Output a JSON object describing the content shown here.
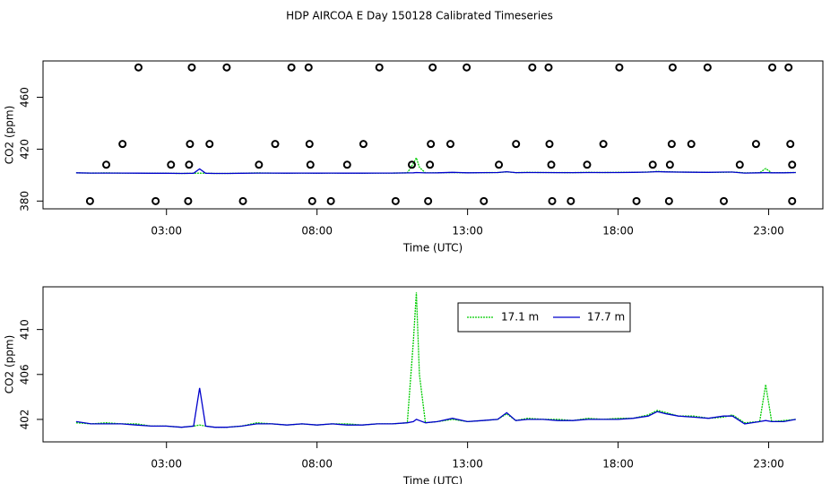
{
  "chart_data": [
    {
      "type": "line",
      "title": "HDP AIRCOA E  Day 150128  Calibrated Timeseries",
      "xlabel": "Time (UTC)",
      "ylabel": "CO2 (ppm)",
      "xlim": [
        -1.1,
        24.8
      ],
      "ylim": [
        374,
        488
      ],
      "xticks": [
        {
          "value": 3,
          "label": "03:00"
        },
        {
          "value": 8,
          "label": "08:00"
        },
        {
          "value": 13,
          "label": "13:00"
        },
        {
          "value": 18,
          "label": "18:00"
        },
        {
          "value": 23,
          "label": "23:00"
        }
      ],
      "yticks": [
        380,
        420,
        460
      ],
      "x": [
        0,
        0.5,
        1,
        1.5,
        2,
        2.5,
        3,
        3.5,
        3.9,
        4.1,
        4.3,
        4.6,
        5,
        5.5,
        6,
        6.5,
        7,
        7.5,
        8,
        8.5,
        9,
        9.5,
        10,
        10.5,
        11,
        11.2,
        11.3,
        11.4,
        11.6,
        12,
        12.5,
        13,
        13.5,
        14,
        14.3,
        14.6,
        15,
        15.5,
        16,
        16.5,
        17,
        17.5,
        18,
        18.5,
        19,
        19.3,
        19.6,
        20,
        20.5,
        21,
        21.5,
        21.8,
        22.2,
        22.7,
        22.9,
        23.1,
        23.5,
        23.9
      ],
      "series": [
        {
          "color": "#00cc00",
          "dash": "2,1",
          "values": [
            401.7,
            401.6,
            401.7,
            401.6,
            401.6,
            401.4,
            401.4,
            401.3,
            401.4,
            401.5,
            401.4,
            401.3,
            401.3,
            401.4,
            401.7,
            401.6,
            401.5,
            401.6,
            401.5,
            401.6,
            401.6,
            401.5,
            401.6,
            401.6,
            401.7,
            409.0,
            413.3,
            406.0,
            401.7,
            401.8,
            402.0,
            401.8,
            401.9,
            402.0,
            402.5,
            401.9,
            402.1,
            402.0,
            402.0,
            401.9,
            402.1,
            402.0,
            402.1,
            402.1,
            402.4,
            402.8,
            402.6,
            402.3,
            402.3,
            402.1,
            402.2,
            402.4,
            401.7,
            401.8,
            405.1,
            401.8,
            401.9,
            402.0
          ]
        },
        {
          "color": "#0000cc",
          "values": [
            401.8,
            401.6,
            401.6,
            401.6,
            401.5,
            401.4,
            401.4,
            401.3,
            401.4,
            404.8,
            401.4,
            401.3,
            401.3,
            401.4,
            401.6,
            401.6,
            401.5,
            401.6,
            401.5,
            401.6,
            401.5,
            401.5,
            401.6,
            401.6,
            401.7,
            401.8,
            402.0,
            401.9,
            401.7,
            401.8,
            402.1,
            401.8,
            401.9,
            402.0,
            402.6,
            401.9,
            402.0,
            402.0,
            401.9,
            401.9,
            402.0,
            402.0,
            402.0,
            402.1,
            402.3,
            402.7,
            402.5,
            402.3,
            402.2,
            402.1,
            402.3,
            402.3,
            401.6,
            401.8,
            401.9,
            401.8,
            401.8,
            402.0
          ]
        },
        {
          "style": "points",
          "color": "#000000",
          "x": [
            2.07,
            3.84,
            5.0,
            7.15,
            7.72,
            10.07,
            11.84,
            12.97,
            15.15,
            15.69,
            18.04,
            19.81,
            20.97,
            23.12,
            23.66,
            1.54,
            3.78,
            4.43,
            6.61,
            7.75,
            9.54,
            11.78,
            12.43,
            14.61,
            15.72,
            17.51,
            19.78,
            20.43,
            22.58,
            23.72,
            1.0,
            3.15,
            3.75,
            6.07,
            7.78,
            9.0,
            11.15,
            11.75,
            14.04,
            15.78,
            16.97,
            19.15,
            19.72,
            22.04,
            23.78,
            0.46,
            2.64,
            3.72,
            5.54,
            7.84,
            8.46,
            10.61,
            11.69,
            13.54,
            15.81,
            16.43,
            18.61,
            19.69,
            21.51,
            23.78
          ],
          "values": [
            483,
            483,
            483,
            483,
            483,
            483,
            483,
            483,
            483,
            483,
            483,
            483,
            483,
            483,
            483,
            424,
            424,
            424,
            424,
            424,
            424,
            424,
            424,
            424,
            424,
            424,
            424,
            424,
            424,
            424,
            408,
            408,
            408,
            408,
            408,
            408,
            408,
            408,
            408,
            408,
            408,
            408,
            408,
            408,
            408,
            380,
            380,
            380,
            380,
            380,
            380,
            380,
            380,
            380,
            380,
            380,
            380,
            380,
            380,
            380
          ]
        }
      ]
    },
    {
      "type": "line",
      "xlabel": "Time (UTC)",
      "ylabel": "CO2 (ppm)",
      "xlim": [
        -1.1,
        24.8
      ],
      "ylim": [
        400,
        413.8
      ],
      "xticks": [
        {
          "value": 3,
          "label": "03:00"
        },
        {
          "value": 8,
          "label": "08:00"
        },
        {
          "value": 13,
          "label": "13:00"
        },
        {
          "value": 18,
          "label": "18:00"
        },
        {
          "value": 23,
          "label": "23:00"
        }
      ],
      "yticks": [
        402,
        406,
        410
      ],
      "legend": "top",
      "x": [
        0,
        0.5,
        1,
        1.5,
        2,
        2.5,
        3,
        3.5,
        3.9,
        4.1,
        4.3,
        4.6,
        5,
        5.5,
        6,
        6.5,
        7,
        7.5,
        8,
        8.5,
        9,
        9.5,
        10,
        10.5,
        11,
        11.2,
        11.3,
        11.4,
        11.6,
        12,
        12.5,
        13,
        13.5,
        14,
        14.3,
        14.6,
        15,
        15.5,
        16,
        16.5,
        17,
        17.5,
        18,
        18.5,
        19,
        19.3,
        19.6,
        20,
        20.5,
        21,
        21.5,
        21.8,
        22.2,
        22.7,
        22.9,
        23.1,
        23.5,
        23.9
      ],
      "series": [
        {
          "name": "17.1 m",
          "color": "#00cc00",
          "dash": "2,1",
          "values": [
            401.7,
            401.6,
            401.7,
            401.6,
            401.6,
            401.4,
            401.4,
            401.3,
            401.4,
            401.5,
            401.4,
            401.3,
            401.3,
            401.4,
            401.7,
            401.6,
            401.5,
            401.6,
            401.5,
            401.6,
            401.6,
            401.5,
            401.6,
            401.6,
            401.7,
            409.0,
            413.3,
            406.0,
            401.7,
            401.8,
            402.0,
            401.8,
            401.9,
            402.0,
            402.5,
            401.9,
            402.1,
            402.0,
            402.0,
            401.9,
            402.1,
            402.0,
            402.1,
            402.1,
            402.4,
            402.8,
            402.6,
            402.3,
            402.3,
            402.1,
            402.2,
            402.4,
            401.7,
            401.8,
            405.1,
            401.8,
            401.9,
            402.0
          ]
        },
        {
          "name": "17.7 m",
          "color": "#0000cc",
          "values": [
            401.8,
            401.6,
            401.6,
            401.6,
            401.5,
            401.4,
            401.4,
            401.3,
            401.4,
            404.8,
            401.4,
            401.3,
            401.3,
            401.4,
            401.6,
            401.6,
            401.5,
            401.6,
            401.5,
            401.6,
            401.5,
            401.5,
            401.6,
            401.6,
            401.7,
            401.8,
            402.0,
            401.9,
            401.7,
            401.8,
            402.1,
            401.8,
            401.9,
            402.0,
            402.6,
            401.9,
            402.0,
            402.0,
            401.9,
            401.9,
            402.0,
            402.0,
            402.0,
            402.1,
            402.3,
            402.7,
            402.5,
            402.3,
            402.2,
            402.1,
            402.3,
            402.3,
            401.6,
            401.8,
            401.9,
            401.8,
            401.8,
            402.0
          ]
        }
      ]
    }
  ]
}
